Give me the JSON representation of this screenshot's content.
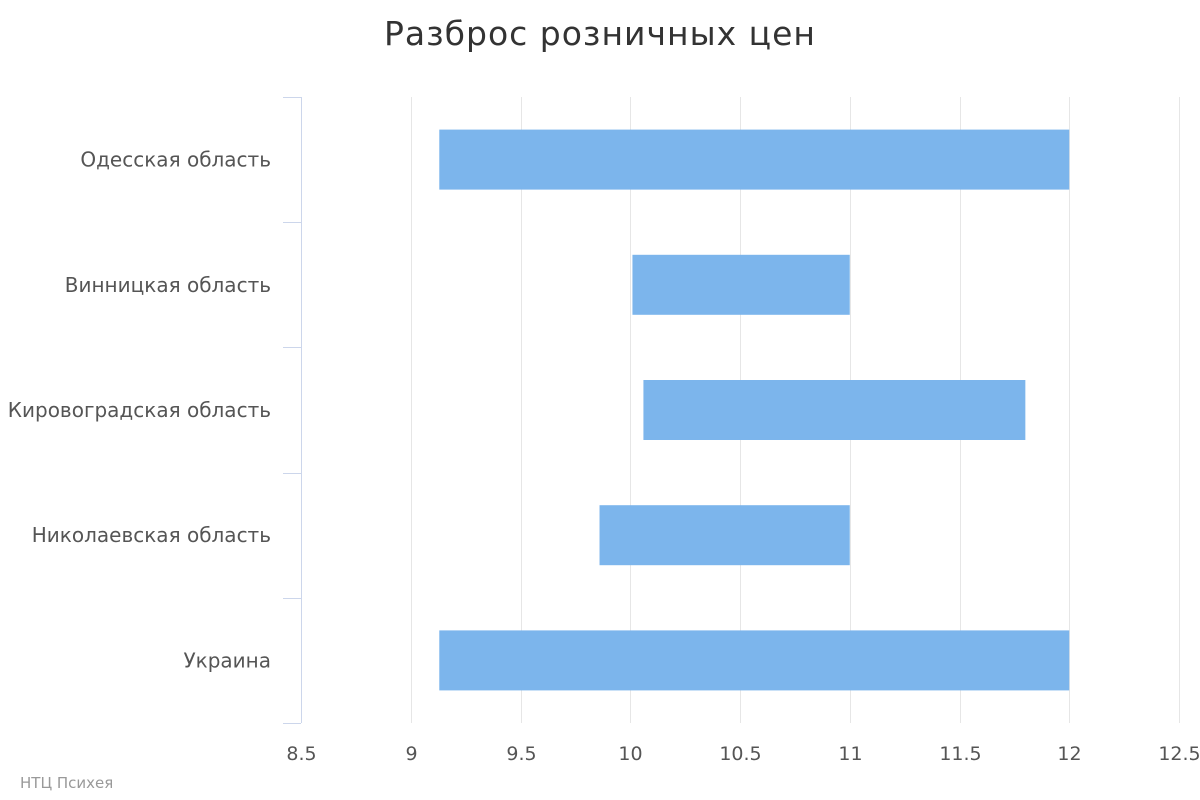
{
  "chart_data": {
    "type": "bar",
    "orientation": "horizontal",
    "subtype": "range",
    "title": "Разброс розничных цен",
    "categories": [
      "Одесская область",
      "Винницкая область",
      "Кировоградская область",
      "Николаевская область",
      "Украина"
    ],
    "series": [
      {
        "low": [
          9.13,
          10.01,
          10.06,
          9.86,
          9.13
        ],
        "high": [
          12.0,
          11.0,
          11.8,
          11.0,
          12.0
        ]
      }
    ],
    "xlim": [
      8.5,
      12.5
    ],
    "xticks": [
      "8.5",
      "9",
      "9.5",
      "10",
      "10.5",
      "11",
      "11.5",
      "12",
      "12.5"
    ],
    "grid": true,
    "bar_color": "#7cb5ec",
    "grid_color": "#e6e6e6",
    "axis_color": "#ccd6eb"
  },
  "credits": "НТЦ Психея"
}
